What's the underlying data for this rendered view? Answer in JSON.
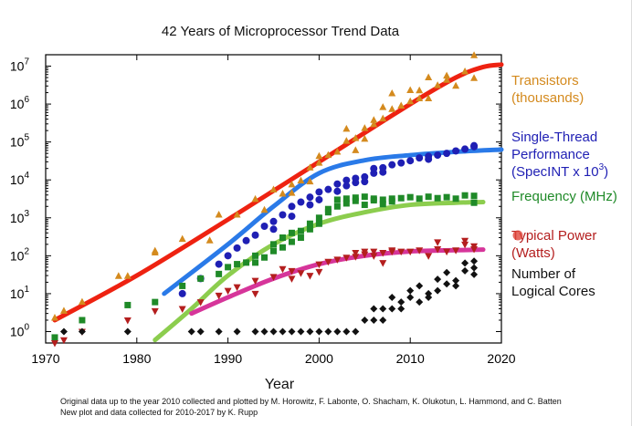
{
  "chart_data": {
    "type": "scatter",
    "title": "42 Years of Microprocessor Trend Data",
    "xlabel": "Year",
    "ylabel": "",
    "xlim": [
      1970,
      2020
    ],
    "ylim": [
      0.5,
      20000000
    ],
    "yscale": "log",
    "x_ticks": [
      1970,
      1980,
      1990,
      2000,
      2010,
      2020
    ],
    "y_ticks": [
      {
        "value": 1,
        "base": "10",
        "exp": "0"
      },
      {
        "value": 10,
        "base": "10",
        "exp": "1"
      },
      {
        "value": 100,
        "base": "10",
        "exp": "2"
      },
      {
        "value": 1000,
        "base": "10",
        "exp": "3"
      },
      {
        "value": 10000,
        "base": "10",
        "exp": "4"
      },
      {
        "value": 100000,
        "base": "10",
        "exp": "5"
      },
      {
        "value": 1000000,
        "base": "10",
        "exp": "6"
      },
      {
        "value": 10000000,
        "base": "10",
        "exp": "7"
      }
    ],
    "series": [
      {
        "name": "Transistors (thousands)",
        "legend_lines": [
          "Transistors",
          "(thousands)"
        ],
        "color": "#d48a1e",
        "marker": "triangle-up",
        "points": [
          [
            1971,
            2.3
          ],
          [
            1972,
            3.5
          ],
          [
            1974,
            6
          ],
          [
            1978,
            29
          ],
          [
            1979,
            29
          ],
          [
            1982,
            134
          ],
          [
            1982,
            120
          ],
          [
            1985,
            275
          ],
          [
            1988,
            250
          ],
          [
            1989,
            1200
          ],
          [
            1991,
            1200
          ],
          [
            1993,
            3100
          ],
          [
            1994,
            1600
          ],
          [
            1995,
            5500
          ],
          [
            1996,
            4300
          ],
          [
            1997,
            7500
          ],
          [
            1997,
            4500
          ],
          [
            1998,
            9500
          ],
          [
            1999,
            21000
          ],
          [
            1999,
            9000
          ],
          [
            2000,
            42000
          ],
          [
            2000,
            28000
          ],
          [
            2001,
            45000
          ],
          [
            2002,
            55000
          ],
          [
            2003,
            106000
          ],
          [
            2003,
            220000
          ],
          [
            2004,
            125000
          ],
          [
            2004,
            60000
          ],
          [
            2005,
            230000
          ],
          [
            2005,
            120000
          ],
          [
            2006,
            291000
          ],
          [
            2006,
            376000
          ],
          [
            2007,
            410000
          ],
          [
            2007,
            820000
          ],
          [
            2008,
            731000
          ],
          [
            2008,
            1900000
          ],
          [
            2009,
            900000
          ],
          [
            2010,
            1170000
          ],
          [
            2010,
            2300000
          ],
          [
            2011,
            2270000
          ],
          [
            2011,
            1400000
          ],
          [
            2012,
            1400000
          ],
          [
            2012,
            5000000
          ],
          [
            2013,
            3100000
          ],
          [
            2014,
            5560000
          ],
          [
            2014,
            4300000
          ],
          [
            2015,
            3000000
          ],
          [
            2016,
            7200000
          ],
          [
            2017,
            19200000
          ],
          [
            2017,
            4800000
          ]
        ],
        "trend": [
          [
            1971,
            2
          ],
          [
            1980,
            30
          ],
          [
            1990,
            900
          ],
          [
            2000,
            30000
          ],
          [
            2010,
            1000000
          ],
          [
            2015,
            5000000
          ],
          [
            2018,
            9500000
          ],
          [
            2020,
            11000000
          ]
        ]
      },
      {
        "name": "Single-Thread Performance (SpecINT x 10^3)",
        "legend_lines": [
          "Single-Thread",
          "Performance"
        ],
        "legend_line3": {
          "prefix": "(SpecINT x 10",
          "sup": "3",
          "suffix": ")"
        },
        "color": "#1f1fb4",
        "marker": "circle",
        "points": [
          [
            1985,
            10
          ],
          [
            1987,
            25
          ],
          [
            1989,
            60
          ],
          [
            1990,
            100
          ],
          [
            1991,
            160
          ],
          [
            1992,
            250
          ],
          [
            1993,
            350
          ],
          [
            1994,
            600
          ],
          [
            1995,
            800
          ],
          [
            1995,
            500
          ],
          [
            1996,
            1200
          ],
          [
            1997,
            2000
          ],
          [
            1997,
            1100
          ],
          [
            1998,
            2600
          ],
          [
            1999,
            3500
          ],
          [
            1999,
            2200
          ],
          [
            2000,
            4800
          ],
          [
            2000,
            3000
          ],
          [
            2001,
            5600
          ],
          [
            2002,
            7800
          ],
          [
            2002,
            5000
          ],
          [
            2003,
            9800
          ],
          [
            2003,
            7000
          ],
          [
            2004,
            11000
          ],
          [
            2004,
            8500
          ],
          [
            2005,
            12000
          ],
          [
            2005,
            9000
          ],
          [
            2006,
            15000
          ],
          [
            2006,
            20000
          ],
          [
            2007,
            21000
          ],
          [
            2007,
            16000
          ],
          [
            2008,
            25000
          ],
          [
            2009,
            28000
          ],
          [
            2010,
            32000
          ],
          [
            2011,
            38000
          ],
          [
            2012,
            42000
          ],
          [
            2012,
            35000
          ],
          [
            2013,
            45000
          ],
          [
            2014,
            50000
          ],
          [
            2015,
            58000
          ],
          [
            2016,
            65000
          ],
          [
            2017,
            80000
          ],
          [
            2017,
            75000
          ]
        ],
        "trend": [
          [
            1983,
            10
          ],
          [
            1990,
            200
          ],
          [
            1995,
            2000
          ],
          [
            2000,
            15000
          ],
          [
            2005,
            33000
          ],
          [
            2010,
            45000
          ],
          [
            2015,
            55000
          ],
          [
            2020,
            63000
          ]
        ]
      },
      {
        "name": "Frequency (MHz)",
        "legend_lines": [
          "Frequency (MHz)"
        ],
        "color": "#1f8a28",
        "marker": "square",
        "points": [
          [
            1971,
            0.7
          ],
          [
            1974,
            2
          ],
          [
            1979,
            5
          ],
          [
            1982,
            6
          ],
          [
            1985,
            16
          ],
          [
            1987,
            25
          ],
          [
            1989,
            33
          ],
          [
            1990,
            50
          ],
          [
            1991,
            60
          ],
          [
            1992,
            66
          ],
          [
            1993,
            66
          ],
          [
            1993,
            100
          ],
          [
            1994,
            90
          ],
          [
            1995,
            133
          ],
          [
            1995,
            200
          ],
          [
            1996,
            166
          ],
          [
            1996,
            300
          ],
          [
            1997,
            233
          ],
          [
            1997,
            400
          ],
          [
            1998,
            450
          ],
          [
            1998,
            300
          ],
          [
            1999,
            500
          ],
          [
            1999,
            700
          ],
          [
            2000,
            1000
          ],
          [
            2000,
            700
          ],
          [
            2001,
            1400
          ],
          [
            2001,
            1700
          ],
          [
            2002,
            2000
          ],
          [
            2002,
            3000
          ],
          [
            2003,
            3200
          ],
          [
            2003,
            2400
          ],
          [
            2004,
            3400
          ],
          [
            2004,
            2800
          ],
          [
            2005,
            3600
          ],
          [
            2005,
            2200
          ],
          [
            2006,
            2900
          ],
          [
            2006,
            3200
          ],
          [
            2007,
            3000
          ],
          [
            2007,
            2300
          ],
          [
            2008,
            3200
          ],
          [
            2008,
            2700
          ],
          [
            2009,
            3300
          ],
          [
            2010,
            3500
          ],
          [
            2011,
            3200
          ],
          [
            2012,
            3600
          ],
          [
            2013,
            3300
          ],
          [
            2014,
            3500
          ],
          [
            2015,
            3200
          ],
          [
            2016,
            3900
          ],
          [
            2017,
            3800
          ],
          [
            2017,
            2500
          ]
        ],
        "trend": [
          [
            1982,
            0.6
          ],
          [
            1986,
            4
          ],
          [
            1990,
            30
          ],
          [
            1995,
            200
          ],
          [
            2000,
            700
          ],
          [
            2005,
            1400
          ],
          [
            2010,
            2200
          ],
          [
            2015,
            2500
          ],
          [
            2018,
            2600
          ]
        ]
      },
      {
        "name": "Typical Power (Watts)",
        "legend_lines": [
          "Typical Power",
          "(Watts)"
        ],
        "color": "#b41e1e",
        "marker": "triangle-down",
        "points": [
          [
            1971,
            0.5
          ],
          [
            1972,
            0.6
          ],
          [
            1974,
            1
          ],
          [
            1979,
            2
          ],
          [
            1982,
            3.5
          ],
          [
            1985,
            4
          ],
          [
            1987,
            6
          ],
          [
            1989,
            9
          ],
          [
            1990,
            12
          ],
          [
            1991,
            15
          ],
          [
            1993,
            22
          ],
          [
            1993,
            10
          ],
          [
            1995,
            28
          ],
          [
            1996,
            45
          ],
          [
            1997,
            40
          ],
          [
            1997,
            25
          ],
          [
            1998,
            35
          ],
          [
            1999,
            30
          ],
          [
            2000,
            60
          ],
          [
            2000,
            38
          ],
          [
            2001,
            70
          ],
          [
            2002,
            80
          ],
          [
            2003,
            90
          ],
          [
            2004,
            120
          ],
          [
            2004,
            95
          ],
          [
            2005,
            130
          ],
          [
            2005,
            110
          ],
          [
            2006,
            100
          ],
          [
            2006,
            130
          ],
          [
            2007,
            120
          ],
          [
            2007,
            65
          ],
          [
            2008,
            140
          ],
          [
            2008,
            130
          ],
          [
            2009,
            130
          ],
          [
            2010,
            130
          ],
          [
            2011,
            140
          ],
          [
            2012,
            100
          ],
          [
            2013,
            150
          ],
          [
            2013,
            230
          ],
          [
            2014,
            130
          ],
          [
            2015,
            140
          ],
          [
            2016,
            250
          ],
          [
            2016,
            200
          ],
          [
            2017,
            180
          ],
          [
            2017,
            150
          ]
        ],
        "trend": [
          [
            1986,
            3
          ],
          [
            1990,
            8
          ],
          [
            1995,
            25
          ],
          [
            2000,
            60
          ],
          [
            2005,
            100
          ],
          [
            2010,
            130
          ],
          [
            2015,
            140
          ],
          [
            2018,
            145
          ]
        ]
      },
      {
        "name": "Number of Logical Cores",
        "legend_lines": [
          "Number of",
          "Logical Cores"
        ],
        "color": "#111111",
        "marker": "diamond",
        "points": [
          [
            1972,
            1
          ],
          [
            1974,
            1
          ],
          [
            1979,
            1
          ],
          [
            1986,
            1
          ],
          [
            1987,
            1
          ],
          [
            1989,
            1
          ],
          [
            1991,
            1
          ],
          [
            1993,
            1
          ],
          [
            1994,
            1
          ],
          [
            1995,
            1
          ],
          [
            1996,
            1
          ],
          [
            1997,
            1
          ],
          [
            1998,
            1
          ],
          [
            1999,
            1
          ],
          [
            2000,
            1
          ],
          [
            2001,
            1
          ],
          [
            2002,
            1
          ],
          [
            2003,
            1
          ],
          [
            2004,
            1
          ],
          [
            2005,
            2
          ],
          [
            2006,
            2
          ],
          [
            2006,
            4
          ],
          [
            2007,
            4
          ],
          [
            2007,
            2
          ],
          [
            2008,
            4
          ],
          [
            2008,
            8
          ],
          [
            2009,
            4
          ],
          [
            2009,
            6
          ],
          [
            2010,
            8
          ],
          [
            2010,
            12
          ],
          [
            2011,
            6
          ],
          [
            2011,
            16
          ],
          [
            2012,
            8
          ],
          [
            2012,
            10
          ],
          [
            2013,
            12
          ],
          [
            2013,
            24
          ],
          [
            2014,
            18
          ],
          [
            2014,
            36
          ],
          [
            2015,
            22
          ],
          [
            2015,
            16
          ],
          [
            2016,
            40
          ],
          [
            2016,
            64
          ],
          [
            2017,
            32
          ],
          [
            2017,
            72
          ],
          [
            2017,
            48
          ]
        ],
        "trend": []
      }
    ]
  },
  "credits": {
    "line1": "Original data up to the year 2010 collected and plotted by M. Horowitz, F. Labonte, O. Shacham, K. Olukotun, L. Hammond, and C. Batten",
    "line2": "New plot and data collected for 2010-2017 by K. Rupp"
  }
}
